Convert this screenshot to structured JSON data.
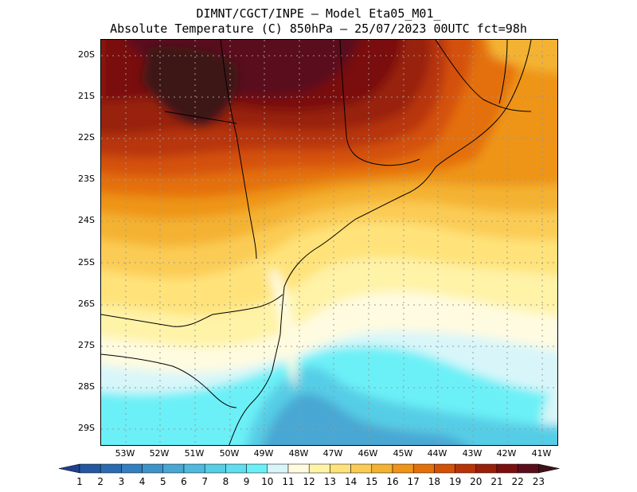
{
  "title_line1": "DIMNT/CGCT/INPE  –   Model Eta05_M01_",
  "title_line2": "Absolute Temperature (C) 850hPa  –   25/07/2023 00UTC fct=98h",
  "lat_labels": [
    "20S",
    "21S",
    "22S",
    "23S",
    "24S",
    "25S",
    "26S",
    "27S",
    "28S",
    "29S"
  ],
  "lon_labels": [
    "53W",
    "52W",
    "51W",
    "50W",
    "49W",
    "48W",
    "47W",
    "46W",
    "45W",
    "44W",
    "43W",
    "42W",
    "41W"
  ],
  "colorbar": {
    "labels": [
      "1",
      "2",
      "3",
      "4",
      "5",
      "6",
      "7",
      "8",
      "9",
      "10",
      "11",
      "12",
      "13",
      "14",
      "15",
      "16",
      "17",
      "18",
      "19",
      "20",
      "21",
      "22",
      "23"
    ],
    "colors": [
      "#1f3f8f",
      "#2557a1",
      "#2b6cb0",
      "#347fbe",
      "#3f93c9",
      "#48a7d3",
      "#4fbade",
      "#57cde6",
      "#60def0",
      "#6cf0f7",
      "#d8f6f9",
      "#fffbe0",
      "#fff3a8",
      "#ffe37a",
      "#fbcc55",
      "#f4b232",
      "#ee9418",
      "#e4700a",
      "#d45108",
      "#b83408",
      "#98200a",
      "#7a1010",
      "#5a0e1c",
      "#3e1216"
    ]
  }
}
